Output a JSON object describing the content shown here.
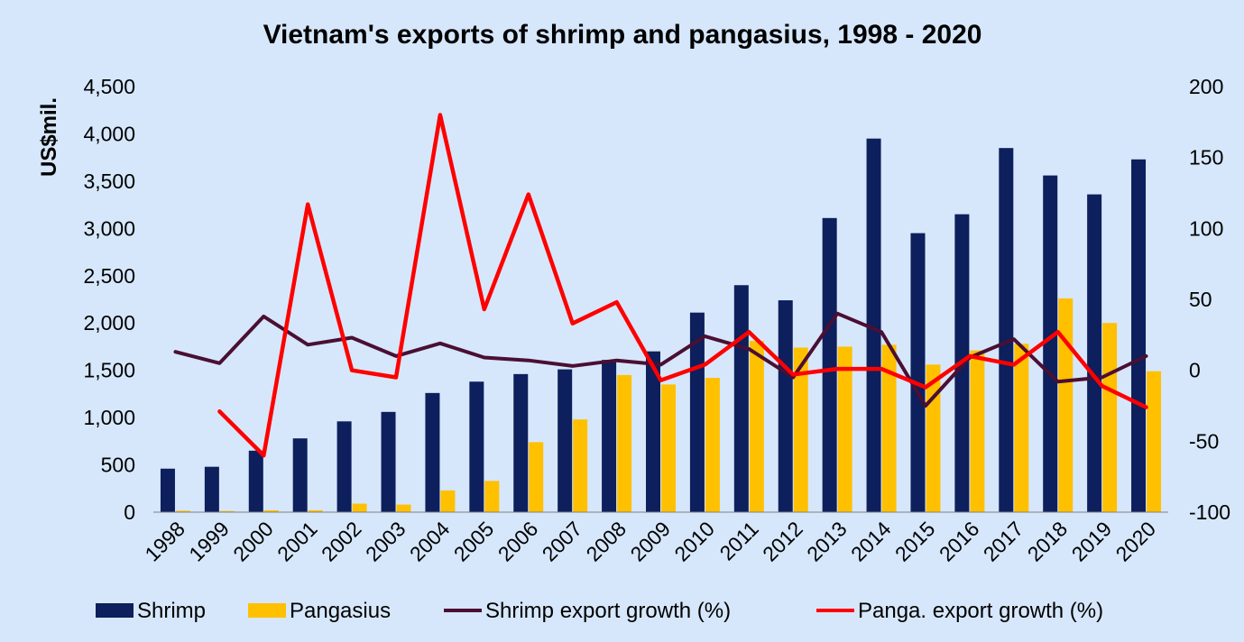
{
  "chart_data": {
    "type": "bar",
    "title": "Vietnam's exports of shrimp and pangasius, 1998 - 2020",
    "ylabel": "US$mil.",
    "y2label": "",
    "ylim": [
      0,
      4500
    ],
    "y2lim": [
      -100,
      200
    ],
    "yticks": [
      "0",
      "500",
      "1,000",
      "1,500",
      "2,000",
      "2,500",
      "3,000",
      "3,500",
      "4,000",
      "4,500"
    ],
    "y2ticks": [
      "-100",
      "-50",
      "0",
      "50",
      "100",
      "150",
      "200"
    ],
    "grid": false,
    "legend_position": "bottom",
    "categories": [
      "1998",
      "1999",
      "2000",
      "2001",
      "2002",
      "2003",
      "2004",
      "2005",
      "2006",
      "2007",
      "2008",
      "2009",
      "2010",
      "2011",
      "2012",
      "2013",
      "2014",
      "2015",
      "2016",
      "2017",
      "2018",
      "2019",
      "2020"
    ],
    "series": [
      {
        "name": "Shrimp",
        "type": "bar",
        "axis": "left",
        "color": "#0d1f5c",
        "values": [
          460,
          480,
          650,
          780,
          960,
          1060,
          1260,
          1380,
          1460,
          1510,
          1610,
          1700,
          2110,
          2400,
          2240,
          3110,
          3950,
          2950,
          3150,
          3850,
          3560,
          3360,
          3730
        ]
      },
      {
        "name": "Pangasius",
        "type": "bar",
        "axis": "left",
        "color": "#ffc000",
        "values": [
          15,
          12,
          20,
          20,
          90,
          80,
          230,
          330,
          740,
          980,
          1450,
          1350,
          1420,
          1810,
          1740,
          1750,
          1770,
          1560,
          1710,
          1780,
          2260,
          2000,
          1490
        ]
      },
      {
        "name": "Shrimp export growth (%)",
        "type": "line",
        "axis": "right",
        "color": "#4a0f33",
        "values": [
          13,
          5,
          38,
          18,
          23,
          10,
          19,
          9,
          7,
          3,
          7,
          4,
          24,
          15,
          -5,
          40,
          27,
          -25,
          9,
          22,
          -8,
          -5,
          10
        ]
      },
      {
        "name": "Panga. export growth (%)",
        "type": "line",
        "axis": "right",
        "color": "#ff0000",
        "values": [
          null,
          -29,
          -60,
          117,
          0,
          -5,
          180,
          43,
          124,
          33,
          48,
          -7,
          4,
          27,
          -3,
          1,
          1,
          -12,
          10,
          4,
          27,
          -11,
          -26
        ]
      }
    ]
  }
}
